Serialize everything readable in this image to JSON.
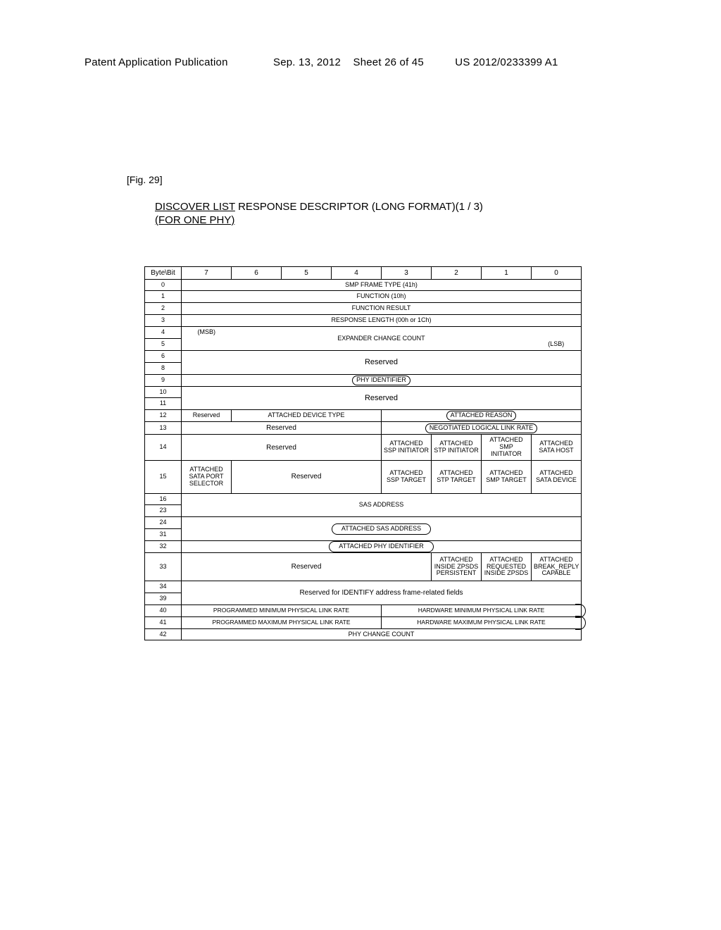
{
  "header": {
    "left": "Patent Application Publication",
    "date": "Sep. 13, 2012",
    "sheet": "Sheet 26 of 45",
    "pubno": "US 2012/0233399 A1"
  },
  "figure": {
    "label": "[Fig. 29]",
    "title_line1a": "DISCOVER LIST",
    "title_line1b": " RESPONSE DESCRIPTOR (LONG FORMAT)(1 / 3)",
    "title_line2": "(FOR ONE PHY)"
  },
  "bits": [
    "7",
    "6",
    "5",
    "4",
    "3",
    "2",
    "1",
    "0"
  ],
  "bytecol_header": "Byte\\Bit",
  "rows": {
    "r0": "SMP FRAME TYPE (41h)",
    "r1": "FUNCTION (10h)",
    "r2": "FUNCTION RESULT",
    "r3": "RESPONSE LENGTH (00h or 1Ch)",
    "r4_msb": "(MSB)",
    "r4_5": "EXPANDER CHANGE COUNT",
    "r5_lsb": "(LSB)",
    "r6_8": "Reserved",
    "r9": "PHY IDENTIFIER",
    "r10_11": "Reserved",
    "r12_a": "Reserved",
    "r12_b": "ATTACHED DEVICE TYPE",
    "r12_c": "ATTACHED REASON",
    "r13_a": "Reserved",
    "r13_b": "NEGOTIATED LOGICAL LINK RATE",
    "r14_a": "Reserved",
    "r14_b": "ATTACHED SSP INITIATOR",
    "r14_c": "ATTACHED STP INITIATOR",
    "r14_d": "ATTACHED SMP INITIATOR",
    "r14_e": "ATTACHED SATA HOST",
    "r15_a": "ATTACHED SATA PORT SELECTOR",
    "r15_b": "Reserved",
    "r15_c": "ATTACHED SSP TARGET",
    "r15_d": "ATTACHED STP TARGET",
    "r15_e": "ATTACHED SMP TARGET",
    "r15_f": "ATTACHED SATA DEVICE",
    "r16_23": "SAS ADDRESS",
    "r24_31": "ATTACHED SAS ADDRESS",
    "r32": "ATTACHED PHY IDENTIFIER",
    "r33_a": "Reserved",
    "r33_b": "ATTACHED INSIDE ZPSDS PERSISTENT",
    "r33_c": "ATTACHED REQUESTED INSIDE ZPSDS",
    "r33_d": "ATTACHED BREAK_REPLY CAPABLE",
    "r34_39": "Reserved for IDENTIFY address frame-related fields",
    "r40_a": "PROGRAMMED MINIMUM PHYSICAL LINK RATE",
    "r40_b": "HARDWARE MINIMUM PHYSICAL LINK RATE",
    "r41_a": "PROGRAMMED MAXIMUM PHYSICAL LINK RATE",
    "r41_b": "HARDWARE MAXIMUM PHYSICAL LINK RATE",
    "r42": "PHY CHANGE COUNT"
  },
  "bytes": {
    "b0": "0",
    "b1": "1",
    "b2": "2",
    "b3": "3",
    "b4": "4",
    "b5": "5",
    "b6": "6",
    "b8": "8",
    "b9": "9",
    "b10": "10",
    "b11": "11",
    "b12": "12",
    "b13": "13",
    "b14": "14",
    "b15": "15",
    "b16": "16",
    "b23": "23",
    "b24": "24",
    "b31": "31",
    "b32": "32",
    "b33": "33",
    "b34": "34",
    "b39": "39",
    "b40": "40",
    "b41": "41",
    "b42": "42"
  },
  "colors": {
    "bg": "#ffffff",
    "ink": "#000000"
  }
}
